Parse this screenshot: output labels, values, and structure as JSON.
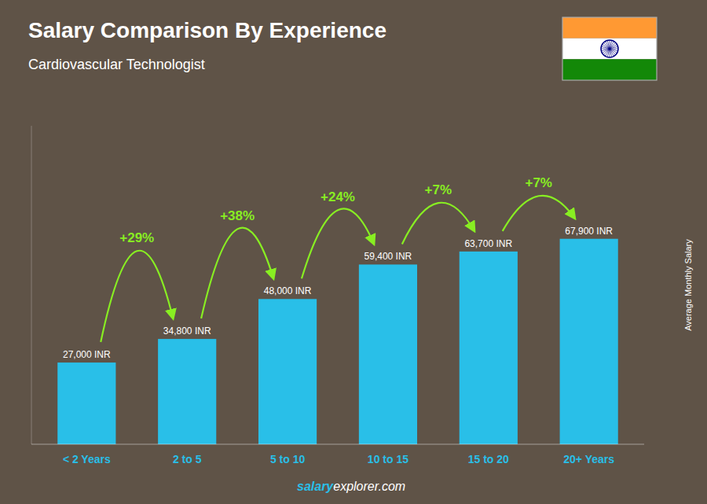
{
  "chart_data": {
    "type": "bar",
    "title": "Salary Comparison By Experience",
    "subtitle": "Cardiovascular Technologist",
    "categories": [
      "< 2 Years",
      "2 to 5",
      "5 to 10",
      "10 to 15",
      "15 to 20",
      "20+ Years"
    ],
    "values": [
      27000,
      34800,
      48000,
      59400,
      63700,
      67900
    ],
    "value_labels": [
      "27,000 INR",
      "34,800 INR",
      "48,000 INR",
      "59,400 INR",
      "63,700 INR",
      "67,900 INR"
    ],
    "data_labels": true,
    "color": "#29bfe8",
    "ylabel": "Average Monthly Salary",
    "ylim": [
      0,
      105245
    ],
    "tick_labels": "x",
    "grid": false,
    "annotations": {
      "texts": [
        "+29%",
        "+38%",
        "+24%",
        "+7%",
        "+7%"
      ],
      "color": "#88ee22"
    },
    "watermark": [
      "salary",
      "explorer.com"
    ],
    "flag": {
      "colors": [
        "#FF9933",
        "#FFFFFF",
        "#138808",
        "#000080"
      ]
    }
  }
}
